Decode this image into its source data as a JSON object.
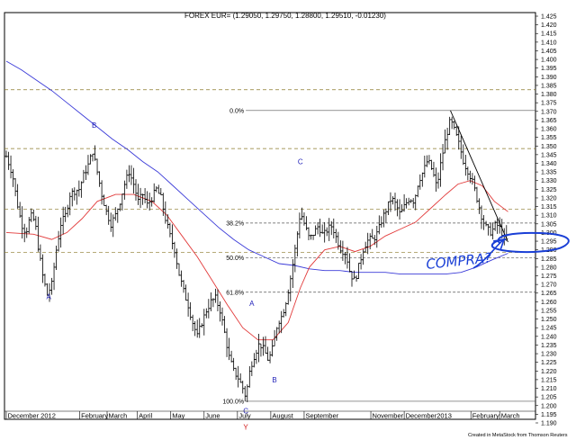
{
  "chart_data": {
    "type": "ohlc_bar",
    "title": "FOREX EUR= (1.29050, 1.29750, 1.28800, 1.29510, -0.01230)",
    "colors": {
      "price_bars": "#000000",
      "ma_short": "#e23b3b",
      "ma_long": "#3b3bd8",
      "fib_lines": "#555555",
      "horizontal_levels": "#8a7a2a",
      "wave_labels": "#1f1fb8",
      "annotation": "#1a3fd6",
      "label_y": "#d21c1c"
    },
    "y_axis": {
      "min": 1.19,
      "max": 1.425,
      "tick_step": 0.005,
      "ticks": [
        "1.190",
        "1.195",
        "1.200",
        "1.205",
        "1.210",
        "1.215",
        "1.220",
        "1.225",
        "1.230",
        "1.235",
        "1.240",
        "1.245",
        "1.250",
        "1.255",
        "1.260",
        "1.265",
        "1.270",
        "1.275",
        "1.280",
        "1.285",
        "1.290",
        "1.295",
        "1.300",
        "1.305",
        "1.310",
        "1.315",
        "1.320",
        "1.325",
        "1.330",
        "1.335",
        "1.340",
        "1.345",
        "1.350",
        "1.355",
        "1.360",
        "1.365",
        "1.370",
        "1.375",
        "1.380",
        "1.385",
        "1.390",
        "1.395",
        "1.400",
        "1.405",
        "1.410",
        "1.415",
        "1.420",
        "1.425"
      ]
    },
    "x_axis": {
      "labels": [
        {
          "text": "December 2012",
          "pos": 0.0
        },
        {
          "text": "February",
          "pos": 48.5
        },
        {
          "text": "March",
          "pos": 66.5
        },
        {
          "text": "April",
          "pos": 86.5
        },
        {
          "text": "May",
          "pos": 108.5
        },
        {
          "text": "June",
          "pos": 130.5
        },
        {
          "text": "July",
          "pos": 152.5
        },
        {
          "text": "August",
          "pos": 174.5
        },
        {
          "text": "September",
          "pos": 196.5
        },
        {
          "text": "November",
          "pos": 240.5
        },
        {
          "text": "December2013",
          "pos": 262.5
        },
        {
          "text": "February",
          "pos": 306.5
        },
        {
          "text": "March",
          "pos": 325.5
        }
      ],
      "range": [
        0,
        342
      ]
    },
    "fib_levels": [
      {
        "label": "0.0%",
        "value": 1.3705
      },
      {
        "label": "38.2%",
        "value": 1.3055
      },
      {
        "label": "50.0%",
        "value": 1.2855
      },
      {
        "label": "61.8%",
        "value": 1.2655
      },
      {
        "label": "100.0%",
        "value": 1.2025
      }
    ],
    "horizontal_levels": [
      1.3825,
      1.3485,
      1.3135,
      1.2885
    ],
    "wave_labels": [
      {
        "text": "A",
        "x": 28,
        "y": 1.2615,
        "color": "#1f1fb8"
      },
      {
        "text": "B",
        "x": 58,
        "y": 1.3605,
        "color": "#1f1fb8"
      },
      {
        "text": "C",
        "x": 158,
        "y": 1.1955,
        "color": "#1f1fb8"
      },
      {
        "text": "Y",
        "x": 158,
        "y": 1.1862,
        "color": "#d21c1c"
      },
      {
        "text": "A",
        "x": 162,
        "y": 1.2575,
        "color": "#1f1fb8"
      },
      {
        "text": "B",
        "x": 177,
        "y": 1.2135,
        "color": "#1f1fb8"
      },
      {
        "text": "C",
        "x": 194,
        "y": 1.3395,
        "color": "#1f1fb8"
      }
    ],
    "annotation": "COMPRA?",
    "credit": "Created in MetaStock from Thomson Reuters",
    "anchors": [
      [
        0,
        1.344
      ],
      [
        4,
        1.334
      ],
      [
        7,
        1.318
      ],
      [
        10,
        1.305
      ],
      [
        13,
        1.3
      ],
      [
        16,
        1.31
      ],
      [
        19,
        1.306
      ],
      [
        21,
        1.292
      ],
      [
        24,
        1.275
      ],
      [
        27,
        1.264
      ],
      [
        30,
        1.27
      ],
      [
        33,
        1.29
      ],
      [
        36,
        1.305
      ],
      [
        39,
        1.31
      ],
      [
        42,
        1.322
      ],
      [
        45,
        1.324
      ],
      [
        48,
        1.325
      ],
      [
        51,
        1.333
      ],
      [
        54,
        1.339
      ],
      [
        57,
        1.347
      ],
      [
        60,
        1.335
      ],
      [
        63,
        1.322
      ],
      [
        66,
        1.312
      ],
      [
        69,
        1.305
      ],
      [
        72,
        1.31
      ],
      [
        75,
        1.318
      ],
      [
        78,
        1.328
      ],
      [
        81,
        1.335
      ],
      [
        84,
        1.328
      ],
      [
        87,
        1.318
      ],
      [
        90,
        1.322
      ],
      [
        93,
        1.316
      ],
      [
        96,
        1.32
      ],
      [
        99,
        1.325
      ],
      [
        102,
        1.32
      ],
      [
        105,
        1.308
      ],
      [
        108,
        1.298
      ],
      [
        111,
        1.29
      ],
      [
        114,
        1.276
      ],
      [
        117,
        1.266
      ],
      [
        120,
        1.258
      ],
      [
        123,
        1.248
      ],
      [
        126,
        1.24
      ],
      [
        129,
        1.248
      ],
      [
        132,
        1.255
      ],
      [
        135,
        1.26
      ],
      [
        138,
        1.262
      ],
      [
        141,
        1.255
      ],
      [
        144,
        1.242
      ],
      [
        147,
        1.228
      ],
      [
        150,
        1.22
      ],
      [
        153,
        1.216
      ],
      [
        156,
        1.21
      ],
      [
        158,
        1.205
      ],
      [
        161,
        1.222
      ],
      [
        164,
        1.23
      ],
      [
        167,
        1.236
      ],
      [
        170,
        1.232
      ],
      [
        173,
        1.226
      ],
      [
        176,
        1.234
      ],
      [
        179,
        1.248
      ],
      [
        182,
        1.252
      ],
      [
        185,
        1.262
      ],
      [
        188,
        1.276
      ],
      [
        191,
        1.293
      ],
      [
        194,
        1.312
      ],
      [
        197,
        1.304
      ],
      [
        200,
        1.296
      ],
      [
        203,
        1.3
      ],
      [
        206,
        1.304
      ],
      [
        209,
        1.298
      ],
      [
        212,
        1.302
      ],
      [
        215,
        1.304
      ],
      [
        218,
        1.296
      ],
      [
        221,
        1.29
      ],
      [
        224,
        1.288
      ],
      [
        227,
        1.276
      ],
      [
        230,
        1.272
      ],
      [
        233,
        1.282
      ],
      [
        236,
        1.292
      ],
      [
        239,
        1.296
      ],
      [
        242,
        1.296
      ],
      [
        245,
        1.3
      ],
      [
        248,
        1.308
      ],
      [
        251,
        1.314
      ],
      [
        254,
        1.32
      ],
      [
        257,
        1.316
      ],
      [
        260,
        1.31
      ],
      [
        263,
        1.316
      ],
      [
        266,
        1.32
      ],
      [
        269,
        1.318
      ],
      [
        272,
        1.33
      ],
      [
        275,
        1.335
      ],
      [
        278,
        1.342
      ],
      [
        281,
        1.336
      ],
      [
        284,
        1.326
      ],
      [
        287,
        1.342
      ],
      [
        290,
        1.355
      ],
      [
        293,
        1.365
      ],
      [
        296,
        1.358
      ],
      [
        299,
        1.35
      ],
      [
        302,
        1.34
      ],
      [
        305,
        1.335
      ],
      [
        308,
        1.328
      ],
      [
        311,
        1.318
      ],
      [
        314,
        1.308
      ],
      [
        317,
        1.302
      ],
      [
        320,
        1.3
      ],
      [
        323,
        1.305
      ],
      [
        326,
        1.302
      ],
      [
        329,
        1.296
      ],
      [
        331,
        1.2951
      ]
    ],
    "ma_short": [
      [
        0,
        1.3
      ],
      [
        18,
        1.299
      ],
      [
        30,
        1.296
      ],
      [
        40,
        1.3
      ],
      [
        50,
        1.308
      ],
      [
        60,
        1.318
      ],
      [
        72,
        1.322
      ],
      [
        84,
        1.322
      ],
      [
        96,
        1.318
      ],
      [
        106,
        1.31
      ],
      [
        116,
        1.298
      ],
      [
        126,
        1.286
      ],
      [
        136,
        1.272
      ],
      [
        146,
        1.258
      ],
      [
        156,
        1.245
      ],
      [
        166,
        1.238
      ],
      [
        176,
        1.238
      ],
      [
        186,
        1.248
      ],
      [
        194,
        1.268
      ],
      [
        200,
        1.28
      ],
      [
        210,
        1.29
      ],
      [
        220,
        1.292
      ],
      [
        230,
        1.289
      ],
      [
        240,
        1.292
      ],
      [
        250,
        1.298
      ],
      [
        260,
        1.302
      ],
      [
        270,
        1.306
      ],
      [
        280,
        1.314
      ],
      [
        290,
        1.322
      ],
      [
        298,
        1.328
      ],
      [
        306,
        1.33
      ],
      [
        314,
        1.327
      ],
      [
        322,
        1.318
      ],
      [
        331,
        1.312
      ]
    ],
    "ma_long": [
      [
        0,
        1.399
      ],
      [
        10,
        1.394
      ],
      [
        20,
        1.388
      ],
      [
        30,
        1.382
      ],
      [
        40,
        1.375
      ],
      [
        50,
        1.368
      ],
      [
        60,
        1.361
      ],
      [
        70,
        1.354
      ],
      [
        80,
        1.348
      ],
      [
        90,
        1.341
      ],
      [
        100,
        1.335
      ],
      [
        110,
        1.327
      ],
      [
        120,
        1.319
      ],
      [
        130,
        1.311
      ],
      [
        140,
        1.303
      ],
      [
        150,
        1.296
      ],
      [
        160,
        1.29
      ],
      [
        170,
        1.286
      ],
      [
        180,
        1.282
      ],
      [
        190,
        1.281
      ],
      [
        200,
        1.279
      ],
      [
        210,
        1.278
      ],
      [
        220,
        1.278
      ],
      [
        230,
        1.277
      ],
      [
        240,
        1.277
      ],
      [
        250,
        1.277
      ],
      [
        260,
        1.276
      ],
      [
        270,
        1.276
      ],
      [
        280,
        1.276
      ],
      [
        290,
        1.276
      ],
      [
        300,
        1.277
      ],
      [
        310,
        1.28
      ],
      [
        320,
        1.284
      ],
      [
        331,
        1.288
      ]
    ]
  }
}
